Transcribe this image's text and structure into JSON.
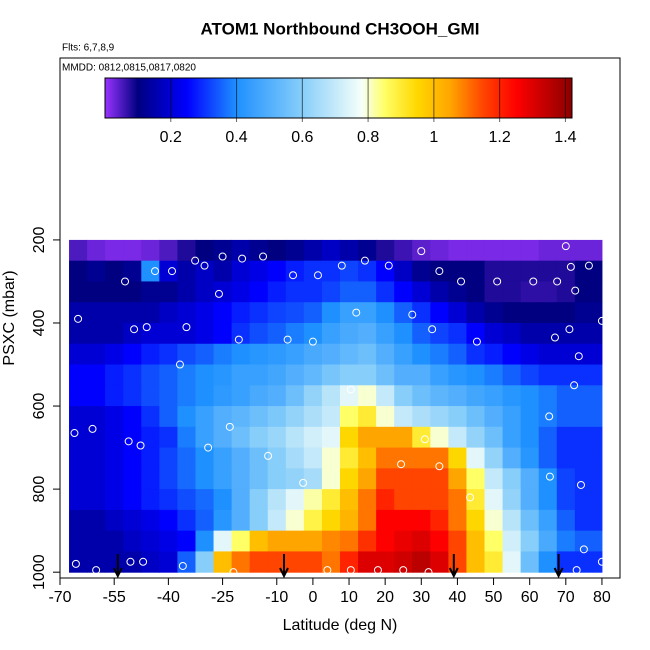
{
  "chart_data": {
    "type": "heatmap",
    "title": "ATOM1 Northbound CH3OOH_GMI",
    "annotations": [
      "Flts: 6,7,8,9",
      "MMDD: 0812,0815,0817,0820"
    ],
    "x_label": "Latitude (deg N)",
    "y_label": "PSXC (mbar)",
    "xlim": [
      -70,
      85
    ],
    "ylim": [
      -238,
      1014
    ],
    "xticks": [
      -70,
      -55,
      -40,
      -25,
      -10,
      0,
      10,
      20,
      30,
      40,
      50,
      60,
      70,
      80
    ],
    "yticks": [
      200,
      400,
      600,
      800,
      1000
    ],
    "xbins": [
      -67.5,
      -62.5,
      -57.5,
      -52.5,
      -47.5,
      -42.5,
      -37.5,
      -32.5,
      -27.5,
      -22.5,
      -17.5,
      -12.5,
      -7.5,
      -2.5,
      2.5,
      7.5,
      12.5,
      17.5,
      22.5,
      27.5,
      32.5,
      37.5,
      42.5,
      47.5,
      52.5,
      57.5,
      62.5,
      67.5,
      72.5,
      77.5,
      80
    ],
    "ybins": [
      200,
      250,
      300,
      350,
      400,
      450,
      500,
      550,
      600,
      650,
      700,
      750,
      800,
      850,
      900,
      950,
      1000
    ],
    "values": [
      [
        0.05,
        0.03,
        0.02,
        0.02,
        0.03,
        0.05,
        0.08,
        0.1,
        0.12,
        0.15,
        0.12,
        0.1,
        0.12,
        0.15,
        0.18,
        0.15,
        0.12,
        0.08,
        0.06,
        0.04,
        0.03,
        0.02,
        0.02,
        0.02,
        0.02,
        0.02,
        0.03,
        0.03,
        0.03,
        0.03
      ],
      [
        0.1,
        0.12,
        0.1,
        0.12,
        0.4,
        0.2,
        0.15,
        0.18,
        0.15,
        0.2,
        0.22,
        0.25,
        0.28,
        0.3,
        0.3,
        0.32,
        0.3,
        0.25,
        0.18,
        0.12,
        0.1,
        0.1,
        0.1,
        0.08,
        0.08,
        0.08,
        0.08,
        0.08,
        0.1,
        0.1
      ],
      [
        0.1,
        0.1,
        0.1,
        0.1,
        0.12,
        0.12,
        0.15,
        0.18,
        0.2,
        0.22,
        0.25,
        0.28,
        0.3,
        0.3,
        0.32,
        0.35,
        0.35,
        0.3,
        0.25,
        0.2,
        0.15,
        0.12,
        0.1,
        0.08,
        0.08,
        0.07,
        0.07,
        0.08,
        0.1,
        0.1
      ],
      [
        0.15,
        0.15,
        0.15,
        0.15,
        0.15,
        0.18,
        0.2,
        0.22,
        0.25,
        0.28,
        0.3,
        0.32,
        0.33,
        0.35,
        0.4,
        0.45,
        0.45,
        0.4,
        0.35,
        0.3,
        0.25,
        0.2,
        0.15,
        0.12,
        0.1,
        0.1,
        0.1,
        0.1,
        0.12,
        0.12
      ],
      [
        0.15,
        0.15,
        0.15,
        0.18,
        0.2,
        0.2,
        0.2,
        0.22,
        0.25,
        0.3,
        0.33,
        0.35,
        0.38,
        0.4,
        0.45,
        0.48,
        0.5,
        0.45,
        0.4,
        0.35,
        0.32,
        0.3,
        0.25,
        0.2,
        0.18,
        0.15,
        0.15,
        0.15,
        0.15,
        0.15
      ],
      [
        0.2,
        0.2,
        0.22,
        0.25,
        0.28,
        0.3,
        0.33,
        0.35,
        0.38,
        0.4,
        0.42,
        0.43,
        0.45,
        0.48,
        0.5,
        0.53,
        0.55,
        0.5,
        0.45,
        0.4,
        0.38,
        0.35,
        0.3,
        0.28,
        0.25,
        0.22,
        0.2,
        0.2,
        0.2,
        0.2
      ],
      [
        0.25,
        0.25,
        0.28,
        0.3,
        0.33,
        0.35,
        0.38,
        0.4,
        0.42,
        0.45,
        0.45,
        0.47,
        0.5,
        0.53,
        0.57,
        0.6,
        0.6,
        0.55,
        0.5,
        0.5,
        0.45,
        0.42,
        0.4,
        0.38,
        0.35,
        0.32,
        0.3,
        0.3,
        0.3,
        0.3
      ],
      [
        0.25,
        0.25,
        0.28,
        0.3,
        0.33,
        0.35,
        0.38,
        0.4,
        0.43,
        0.45,
        0.48,
        0.5,
        0.55,
        0.62,
        0.68,
        0.75,
        0.8,
        0.7,
        0.6,
        0.55,
        0.52,
        0.5,
        0.47,
        0.45,
        0.42,
        0.4,
        0.38,
        0.35,
        0.35,
        0.35
      ],
      [
        0.2,
        0.2,
        0.22,
        0.25,
        0.3,
        0.35,
        0.4,
        0.45,
        0.5,
        0.52,
        0.55,
        0.58,
        0.62,
        0.66,
        0.7,
        0.85,
        0.9,
        0.8,
        0.7,
        0.66,
        0.63,
        0.6,
        0.55,
        0.5,
        0.45,
        0.4,
        0.38,
        0.35,
        0.35,
        0.35
      ],
      [
        0.2,
        0.2,
        0.22,
        0.25,
        0.28,
        0.3,
        0.38,
        0.45,
        0.5,
        0.55,
        0.6,
        0.63,
        0.68,
        0.72,
        0.75,
        0.95,
        1.05,
        1.05,
        1.05,
        0.9,
        0.8,
        0.7,
        0.62,
        0.55,
        0.45,
        0.4,
        0.35,
        0.3,
        0.3,
        0.3
      ],
      [
        0.2,
        0.2,
        0.22,
        0.25,
        0.28,
        0.32,
        0.36,
        0.4,
        0.45,
        0.5,
        0.55,
        0.6,
        0.65,
        0.7,
        0.8,
        0.9,
        1.0,
        1.1,
        1.1,
        1.1,
        1.1,
        0.95,
        0.75,
        0.62,
        0.5,
        0.42,
        0.35,
        0.3,
        0.3,
        0.3
      ],
      [
        0.2,
        0.2,
        0.22,
        0.25,
        0.28,
        0.32,
        0.36,
        0.4,
        0.45,
        0.5,
        0.55,
        0.6,
        0.62,
        0.65,
        0.8,
        0.95,
        1.05,
        1.15,
        1.15,
        1.15,
        1.15,
        1.05,
        0.85,
        0.7,
        0.6,
        0.5,
        0.4,
        0.32,
        0.3,
        0.3
      ],
      [
        0.2,
        0.2,
        0.22,
        0.25,
        0.28,
        0.3,
        0.33,
        0.36,
        0.4,
        0.5,
        0.6,
        0.68,
        0.75,
        0.82,
        0.9,
        1.0,
        1.1,
        1.2,
        1.15,
        1.15,
        1.15,
        1.1,
        0.9,
        0.75,
        0.62,
        0.5,
        0.4,
        0.32,
        0.3,
        0.3
      ],
      [
        0.15,
        0.15,
        0.18,
        0.2,
        0.22,
        0.25,
        0.3,
        0.35,
        0.42,
        0.5,
        0.6,
        0.7,
        0.8,
        0.88,
        0.95,
        1.02,
        1.1,
        1.25,
        1.25,
        1.25,
        1.2,
        1.1,
        0.95,
        0.8,
        0.68,
        0.55,
        0.45,
        0.35,
        0.3,
        0.3
      ],
      [
        0.15,
        0.15,
        0.15,
        0.18,
        0.2,
        0.22,
        0.25,
        0.4,
        0.75,
        0.85,
        1.0,
        1.05,
        1.05,
        1.05,
        1.08,
        1.1,
        1.18,
        1.25,
        1.28,
        1.3,
        1.25,
        1.15,
        1.0,
        0.85,
        0.72,
        0.6,
        0.48,
        0.38,
        0.35,
        0.35
      ],
      [
        0.15,
        0.15,
        0.15,
        0.15,
        0.18,
        0.2,
        0.35,
        0.6,
        1.0,
        1.1,
        1.15,
        1.15,
        1.15,
        1.15,
        1.1,
        1.2,
        1.3,
        1.3,
        1.32,
        1.35,
        1.3,
        1.15,
        1.0,
        0.9,
        0.75,
        0.55,
        0.4,
        0.3,
        0.3,
        0.3
      ]
    ],
    "colorbar": {
      "lim": [
        0,
        1.42
      ],
      "ticks": [
        0.2,
        0.4,
        0.6,
        0.8,
        1.0,
        1.2,
        1.4
      ],
      "colorscale": [
        [
          0,
          "#9933ff"
        ],
        [
          0.1,
          "#000080"
        ],
        [
          0.25,
          "#0000ff"
        ],
        [
          0.4,
          "#1e90ff"
        ],
        [
          0.6,
          "#87cefa"
        ],
        [
          0.78,
          "#f5fffa"
        ],
        [
          0.85,
          "#ffff66"
        ],
        [
          0.95,
          "#ffd700"
        ],
        [
          1.05,
          "#ffa500"
        ],
        [
          1.15,
          "#ff4500"
        ],
        [
          1.25,
          "#ff0000"
        ],
        [
          1.42,
          "#8b0000"
        ]
      ]
    },
    "points": {
      "x": [
        -25,
        -32.6,
        -30,
        -19.6,
        -13.8,
        -39,
        -43.7,
        -52,
        -26,
        -5.5,
        1.4,
        8,
        14.4,
        21,
        30,
        35,
        41,
        51,
        61,
        67.6,
        71.4,
        76.4,
        70,
        72.6,
        -65,
        -49.5,
        -46,
        -35,
        -20.5,
        -7,
        0,
        12,
        27.5,
        33,
        45.4,
        67,
        71,
        80,
        73.6,
        -36.8,
        10.5,
        72.3,
        65.4,
        -23,
        -61,
        -66,
        -51,
        -47.7,
        -29,
        31,
        -12.4,
        24.4,
        35,
        65.6,
        74.2,
        -2.7,
        43.5,
        75,
        -65.6,
        -50.5,
        -47,
        -36,
        -60,
        -22,
        4,
        10.5,
        18,
        25,
        32,
        73,
        80
      ],
      "y": [
        240,
        250,
        262,
        245,
        240,
        275,
        275,
        300,
        330,
        285,
        285,
        262,
        250,
        262,
        227,
        275,
        300,
        300,
        300,
        300,
        265,
        262,
        215,
        322,
        390,
        415,
        410,
        410,
        440,
        440,
        445,
        375,
        380,
        415,
        445,
        435,
        415,
        395,
        480,
        500,
        560,
        550,
        625,
        650,
        655,
        665,
        685,
        695,
        700,
        680,
        720,
        740,
        745,
        770,
        790,
        785,
        820,
        945,
        980,
        975,
        975,
        985,
        995,
        1000,
        995,
        995,
        995,
        995,
        1000,
        995,
        975
      ]
    },
    "arrows": [
      -54,
      -8,
      39,
      68
    ]
  }
}
